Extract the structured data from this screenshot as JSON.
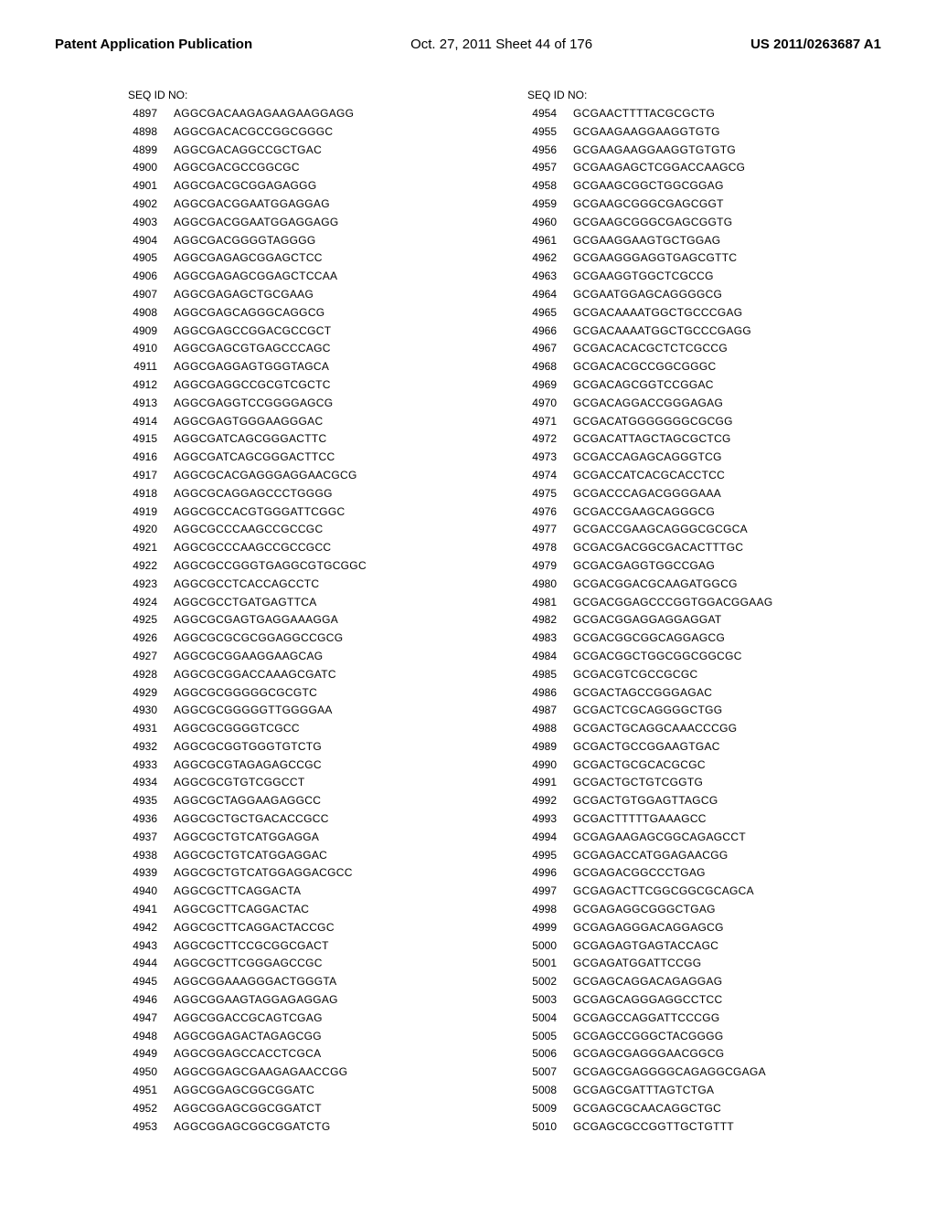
{
  "header": {
    "publication_label": "Patent Application Publication",
    "sheet_label": "Oct. 27, 2011  Sheet 44 of 176",
    "publication_number": "US 2011/0263687 A1"
  },
  "left": {
    "title": "SEQ ID NO:",
    "rows": [
      {
        "id": "4897",
        "seq": "AGGCGACAAGAGAAGAAGGAGG"
      },
      {
        "id": "4898",
        "seq": "AGGCGACACGCCGGCGGGC"
      },
      {
        "id": "4899",
        "seq": "AGGCGACAGGCCGCTGAC"
      },
      {
        "id": "4900",
        "seq": "AGGCGACGCCGGCGC"
      },
      {
        "id": "4901",
        "seq": "AGGCGACGCGGAGAGGG"
      },
      {
        "id": "4902",
        "seq": "AGGCGACGGAATGGAGGAG"
      },
      {
        "id": "4903",
        "seq": "AGGCGACGGAATGGAGGAGG"
      },
      {
        "id": "4904",
        "seq": "AGGCGACGGGGTAGGGG"
      },
      {
        "id": "4905",
        "seq": "AGGCGAGAGCGGAGCTCC"
      },
      {
        "id": "4906",
        "seq": "AGGCGAGAGCGGAGCTCCAA"
      },
      {
        "id": "4907",
        "seq": "AGGCGAGAGCTGCGAAG"
      },
      {
        "id": "4908",
        "seq": "AGGCGAGCAGGGCAGGCG"
      },
      {
        "id": "4909",
        "seq": "AGGCGAGCCGGACGCCGCT"
      },
      {
        "id": "4910",
        "seq": "AGGCGAGCGTGAGCCCAGC"
      },
      {
        "id": "4911",
        "seq": "AGGCGAGGAGTGGGTAGCA"
      },
      {
        "id": "4912",
        "seq": "AGGCGAGGCCGCGTCGCTC"
      },
      {
        "id": "4913",
        "seq": "AGGCGAGGTCCGGGGAGCG"
      },
      {
        "id": "4914",
        "seq": "AGGCGAGTGGGAAGGGAC"
      },
      {
        "id": "4915",
        "seq": "AGGCGATCAGCGGGACTTC"
      },
      {
        "id": "4916",
        "seq": "AGGCGATCAGCGGGACTTCC"
      },
      {
        "id": "4917",
        "seq": "AGGCGCACGAGGGAGGAACGCG"
      },
      {
        "id": "4918",
        "seq": "AGGCGCAGGAGCCCTGGGG"
      },
      {
        "id": "4919",
        "seq": "AGGCGCCACGTGGGATTCGGC"
      },
      {
        "id": "4920",
        "seq": "AGGCGCCCAAGCCGCCGC"
      },
      {
        "id": "4921",
        "seq": "AGGCGCCCAAGCCGCCGCC"
      },
      {
        "id": "4922",
        "seq": "AGGCGCCGGGTGAGGCGTGCGGC"
      },
      {
        "id": "4923",
        "seq": "AGGCGCCTCACCAGCCTC"
      },
      {
        "id": "4924",
        "seq": "AGGCGCCTGATGAGTTCA"
      },
      {
        "id": "4925",
        "seq": "AGGCGCGAGTGAGGAAAGGA"
      },
      {
        "id": "4926",
        "seq": "AGGCGCGCGCGGAGGCCGCG"
      },
      {
        "id": "4927",
        "seq": "AGGCGCGGAAGGAAGCAG"
      },
      {
        "id": "4928",
        "seq": "AGGCGCGGACCAAAGCGATC"
      },
      {
        "id": "4929",
        "seq": "AGGCGCGGGGGCGCGTC"
      },
      {
        "id": "4930",
        "seq": "AGGCGCGGGGGTTGGGGAA"
      },
      {
        "id": "4931",
        "seq": "AGGCGCGGGGTCGCC"
      },
      {
        "id": "4932",
        "seq": "AGGCGCGGTGGGTGTCTG"
      },
      {
        "id": "4933",
        "seq": "AGGCGCGTAGAGAGCCGC"
      },
      {
        "id": "4934",
        "seq": "AGGCGCGTGTCGGCCT"
      },
      {
        "id": "4935",
        "seq": "AGGCGCTAGGAAGAGGCC"
      },
      {
        "id": "4936",
        "seq": "AGGCGCTGCTGACACCGCC"
      },
      {
        "id": "4937",
        "seq": "AGGCGCTGTCATGGAGGA"
      },
      {
        "id": "4938",
        "seq": "AGGCGCTGTCATGGAGGAC"
      },
      {
        "id": "4939",
        "seq": "AGGCGCTGTCATGGAGGACGCC"
      },
      {
        "id": "4940",
        "seq": "AGGCGCTTCAGGACTA"
      },
      {
        "id": "4941",
        "seq": "AGGCGCTTCAGGACTAC"
      },
      {
        "id": "4942",
        "seq": "AGGCGCTTCAGGACTACCGC"
      },
      {
        "id": "4943",
        "seq": "AGGCGCTTCCGCGGCGACT"
      },
      {
        "id": "4944",
        "seq": "AGGCGCTTCGGGAGCCGC"
      },
      {
        "id": "4945",
        "seq": "AGGCGGAAAGGGACTGGGTA"
      },
      {
        "id": "4946",
        "seq": "AGGCGGAAGTAGGAGAGGAG"
      },
      {
        "id": "4947",
        "seq": "AGGCGGACCGCAGTCGAG"
      },
      {
        "id": "4948",
        "seq": "AGGCGGAGACTAGAGCGG"
      },
      {
        "id": "4949",
        "seq": "AGGCGGAGCCACCTCGCA"
      },
      {
        "id": "4950",
        "seq": "AGGCGGAGCGAAGAGAACCGG"
      },
      {
        "id": "4951",
        "seq": "AGGCGGAGCGGCGGATC"
      },
      {
        "id": "4952",
        "seq": "AGGCGGAGCGGCGGATCT"
      },
      {
        "id": "4953",
        "seq": "AGGCGGAGCGGCGGATCTG"
      }
    ]
  },
  "right": {
    "title": "SEQ ID NO:",
    "rows": [
      {
        "id": "4954",
        "seq": "GCGAACTTTTACGCGCTG"
      },
      {
        "id": "4955",
        "seq": "GCGAAGAAGGAAGGTGTG"
      },
      {
        "id": "4956",
        "seq": "GCGAAGAAGGAAGGTGTGTG"
      },
      {
        "id": "4957",
        "seq": "GCGAAGAGCTCGGACCAAGCG"
      },
      {
        "id": "4958",
        "seq": "GCGAAGCGGCTGGCGGAG"
      },
      {
        "id": "4959",
        "seq": "GCGAAGCGGGCGAGCGGT"
      },
      {
        "id": "4960",
        "seq": "GCGAAGCGGGCGAGCGGTG"
      },
      {
        "id": "4961",
        "seq": "GCGAAGGAAGTGCTGGAG"
      },
      {
        "id": "4962",
        "seq": "GCGAAGGGAGGTGAGCGTTC"
      },
      {
        "id": "4963",
        "seq": "GCGAAGGTGGCTCGCCG"
      },
      {
        "id": "4964",
        "seq": "GCGAATGGAGCAGGGGCG"
      },
      {
        "id": "4965",
        "seq": "GCGACAAAATGGCTGCCCGAG"
      },
      {
        "id": "4966",
        "seq": "GCGACAAAATGGCTGCCCGAGG"
      },
      {
        "id": "4967",
        "seq": "GCGACACACGCTCTCGCCG"
      },
      {
        "id": "4968",
        "seq": "GCGACACGCCGGCGGGC"
      },
      {
        "id": "4969",
        "seq": "GCGACAGCGGTCCGGAC"
      },
      {
        "id": "4970",
        "seq": "GCGACAGGACCGGGAGAG"
      },
      {
        "id": "4971",
        "seq": "GCGACATGGGGGGGCGCGG"
      },
      {
        "id": "4972",
        "seq": "GCGACATTAGCTAGCGCTCG"
      },
      {
        "id": "4973",
        "seq": "GCGACCAGAGCAGGGTCG"
      },
      {
        "id": "4974",
        "seq": "GCGACCATCACGCACCTCC"
      },
      {
        "id": "4975",
        "seq": "GCGACCCAGACGGGGAAA"
      },
      {
        "id": "4976",
        "seq": "GCGACCGAAGCAGGGCG"
      },
      {
        "id": "4977",
        "seq": "GCGACCGAAGCAGGGCGCGCA"
      },
      {
        "id": "4978",
        "seq": "GCGACGACGGCGACACTTTGC"
      },
      {
        "id": "4979",
        "seq": "GCGACGAGGTGGCCGAG"
      },
      {
        "id": "4980",
        "seq": "GCGACGGACGCAAGATGGCG"
      },
      {
        "id": "4981",
        "seq": "GCGACGGAGCCCGGTGGACGGAAG"
      },
      {
        "id": "4982",
        "seq": "GCGACGGAGGAGGAGGAT"
      },
      {
        "id": "4983",
        "seq": "GCGACGGCGGCAGGAGCG"
      },
      {
        "id": "4984",
        "seq": "GCGACGGCTGGCGGCGGCGC"
      },
      {
        "id": "4985",
        "seq": "GCGACGTCGCCGCGC"
      },
      {
        "id": "4986",
        "seq": "GCGACTAGCCGGGAGAC"
      },
      {
        "id": "4987",
        "seq": "GCGACTCGCAGGGGCTGG"
      },
      {
        "id": "4988",
        "seq": "GCGACTGCAGGCAAACCCGG"
      },
      {
        "id": "4989",
        "seq": "GCGACTGCCGGAAGTGAC"
      },
      {
        "id": "4990",
        "seq": "GCGACTGCGCACGCGC"
      },
      {
        "id": "4991",
        "seq": "GCGACTGCTGTCGGTG"
      },
      {
        "id": "4992",
        "seq": "GCGACTGTGGAGTTAGCG"
      },
      {
        "id": "4993",
        "seq": "GCGACTTTTTGAAAGCC"
      },
      {
        "id": "4994",
        "seq": "GCGAGAAGAGCGGCAGAGCCT"
      },
      {
        "id": "4995",
        "seq": "GCGAGACCATGGAGAACGG"
      },
      {
        "id": "4996",
        "seq": "GCGAGACGGCCCTGAG"
      },
      {
        "id": "4997",
        "seq": "GCGAGACTTCGGCGGCGCAGCA"
      },
      {
        "id": "4998",
        "seq": "GCGAGAGGCGGGCTGAG"
      },
      {
        "id": "4999",
        "seq": "GCGAGAGGGACAGGAGCG"
      },
      {
        "id": "5000",
        "seq": "GCGAGAGTGAGTACCAGC"
      },
      {
        "id": "5001",
        "seq": "GCGAGATGGATTCCGG"
      },
      {
        "id": "5002",
        "seq": "GCGAGCAGGACAGAGGAG"
      },
      {
        "id": "5003",
        "seq": "GCGAGCAGGGAGGCCTCC"
      },
      {
        "id": "5004",
        "seq": "GCGAGCCAGGATTCCCGG"
      },
      {
        "id": "5005",
        "seq": "GCGAGCCGGGCTACGGGG"
      },
      {
        "id": "5006",
        "seq": "GCGAGCGAGGGAACGGCG"
      },
      {
        "id": "5007",
        "seq": "GCGAGCGAGGGGCAGAGGCGAGA"
      },
      {
        "id": "5008",
        "seq": "GCGAGCGATTTAGTCTGA"
      },
      {
        "id": "5009",
        "seq": "GCGAGCGCAACAGGCTGC"
      },
      {
        "id": "5010",
        "seq": "GCGAGCGCCGGTTGCTGTTT"
      }
    ]
  }
}
